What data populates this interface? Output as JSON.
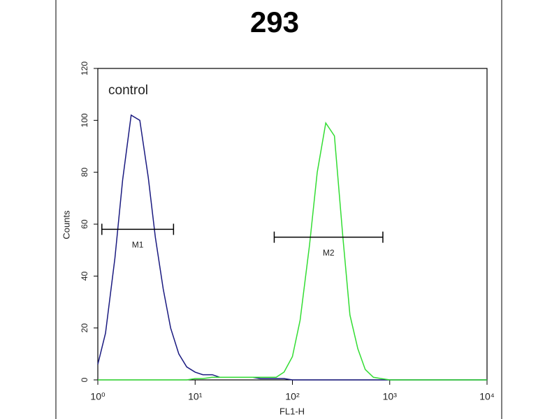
{
  "chart_data": {
    "type": "line",
    "title": "293",
    "x_label": "FL1-H",
    "y_label": "Counts",
    "xscale": "log",
    "x": [
      1,
      1.2,
      1.5,
      1.8,
      2.2,
      2.7,
      3.3,
      3.9,
      4.7,
      5.6,
      6.8,
      8.2,
      10,
      12,
      15,
      18,
      22,
      27,
      33,
      39,
      47,
      56,
      68,
      82,
      100,
      120,
      150,
      180,
      220,
      270,
      330,
      390,
      470,
      560,
      680,
      820,
      1000,
      1200,
      1500,
      2000,
      3000,
      5000,
      10000
    ],
    "series": [
      {
        "name": "control",
        "color": "#1a1a80",
        "values": [
          6,
          18,
          47,
          77,
          102,
          100,
          78,
          55,
          35,
          20,
          10,
          5,
          3,
          2,
          2,
          1,
          1,
          1,
          1,
          1,
          0.5,
          0.5,
          0.5,
          0.5,
          0,
          0,
          0,
          0,
          0,
          0,
          0,
          0,
          0,
          0,
          0,
          0,
          0,
          0,
          0,
          0,
          0,
          0,
          0
        ]
      },
      {
        "color": "#33dd33",
        "values": [
          0,
          0,
          0,
          0,
          0,
          0,
          0,
          0,
          0,
          0,
          0,
          0,
          0.5,
          0.5,
          1,
          1,
          1,
          1,
          1,
          1,
          1,
          1,
          1,
          3,
          9,
          23,
          52,
          80,
          99,
          94,
          55,
          25,
          12,
          4,
          1,
          0.5,
          0,
          0,
          0,
          0,
          0,
          0,
          0
        ]
      }
    ],
    "markers": [
      {
        "label": "M1",
        "x": [
          1.1,
          6
        ],
        "y": 58
      },
      {
        "label": "M2",
        "x": [
          65,
          850
        ],
        "y": 55
      }
    ],
    "xlim": [
      1,
      10000
    ],
    "xticks": [
      {
        "value": 1,
        "label": "10⁰"
      },
      {
        "value": 10,
        "label": "10¹"
      },
      {
        "value": 100,
        "label": "10²"
      },
      {
        "value": 1000,
        "label": "10³"
      },
      {
        "value": 10000,
        "label": "10⁴"
      }
    ],
    "ylim": [
      0,
      120
    ],
    "yticks": [
      0,
      20,
      40,
      60,
      80,
      100,
      120
    ]
  }
}
